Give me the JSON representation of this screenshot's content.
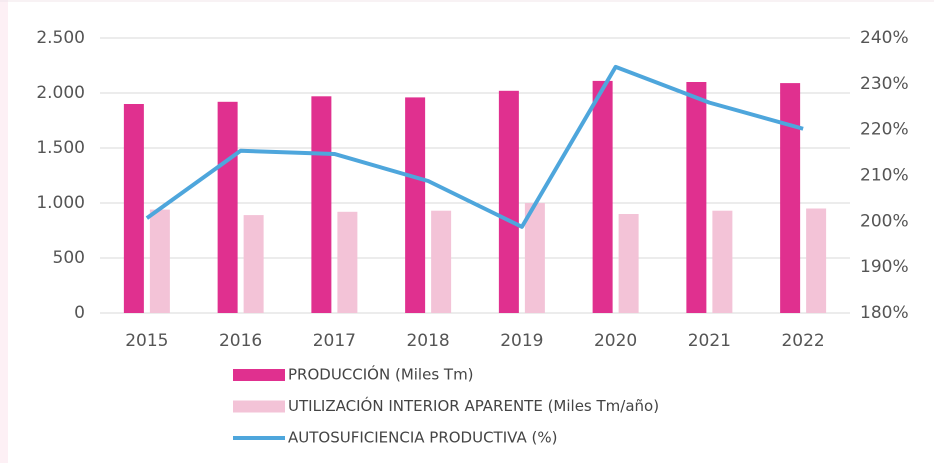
{
  "chart_data": {
    "type": "bar_line",
    "categories": [
      "2015",
      "2016",
      "2017",
      "2018",
      "2019",
      "2020",
      "2021",
      "2022"
    ],
    "series": [
      {
        "name": "PRODUCCIÓN (Miles Tm)",
        "type": "bar",
        "color": "#e0308f",
        "values": [
          1900,
          1920,
          1970,
          1960,
          2020,
          2110,
          2100,
          2090
        ]
      },
      {
        "name": "UTILIZACIÓN INTERIOR APARENTE (Miles Tm/año)",
        "type": "bar",
        "color": "#f3c3d7",
        "values": [
          940,
          890,
          920,
          930,
          1000,
          900,
          930,
          950
        ]
      },
      {
        "name": "AUTOSUFICIENCIA PRODUCTIVA (%)",
        "type": "line",
        "axis": "y2",
        "color": "#4ea6dc",
        "values": [
          200.7,
          215.4,
          214.7,
          208.8,
          198.8,
          233.7,
          225.9,
          220.2
        ]
      }
    ],
    "ylim": [
      0,
      2500
    ],
    "yticks": [
      0,
      500,
      {
        "value": 1000,
        "label": "1.000"
      },
      {
        "value": 1500,
        "label": "1.500"
      },
      {
        "value": 2000,
        "label": "2.000"
      },
      {
        "value": 2500,
        "label": "2.500"
      }
    ],
    "y2lim": [
      180,
      240
    ],
    "y2ticks": [
      {
        "value": 180,
        "label": "180%"
      },
      {
        "value": 190,
        "label": "190%"
      },
      {
        "value": 200,
        "label": "200%"
      },
      {
        "value": 210,
        "label": "210%"
      },
      {
        "value": 220,
        "label": "220%"
      },
      {
        "value": 230,
        "label": "230%"
      },
      {
        "value": 240,
        "label": "240%"
      }
    ],
    "grid": true
  }
}
